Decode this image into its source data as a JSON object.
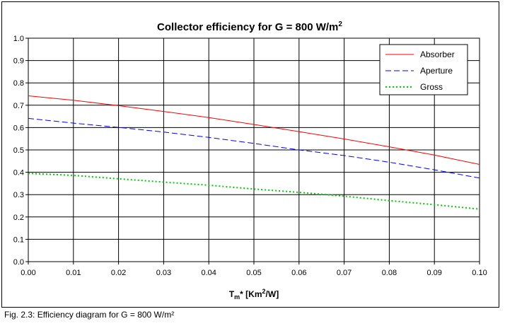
{
  "chart_data": {
    "type": "line",
    "title_main": "Collector efficiency for G = 800 W/m",
    "title_sup": "2",
    "xlabel_main": "T",
    "xlabel_sub": "m",
    "xlabel_mid": "* [Km",
    "xlabel_sup": "2",
    "xlabel_end": "/W]",
    "xlim": [
      0,
      0.1
    ],
    "ylim": [
      0,
      1.0
    ],
    "x_ticks": [
      "0.00",
      "0.01",
      "0.02",
      "0.03",
      "0.04",
      "0.05",
      "0.06",
      "0.07",
      "0.08",
      "0.09",
      "0.10"
    ],
    "y_ticks": [
      "0.0",
      "0.1",
      "0.2",
      "0.3",
      "0.4",
      "0.5",
      "0.6",
      "0.7",
      "0.8",
      "0.9",
      "1.0"
    ],
    "grid": true,
    "legend_position": "top-right",
    "x": [
      0,
      0.01,
      0.02,
      0.03,
      0.04,
      0.05,
      0.06,
      0.07,
      0.08,
      0.09,
      0.1
    ],
    "series": [
      {
        "name": "Absorber",
        "color": "#ff0000",
        "dash": "solid",
        "values": [
          0.742,
          0.722,
          0.698,
          0.672,
          0.645,
          0.614,
          0.582,
          0.549,
          0.514,
          0.477,
          0.435
        ]
      },
      {
        "name": "Aperture",
        "color": "#0000ff",
        "dash": "dashed",
        "values": [
          0.641,
          0.62,
          0.601,
          0.58,
          0.556,
          0.529,
          0.5,
          0.475,
          0.445,
          0.411,
          0.374
        ]
      },
      {
        "name": "Gross",
        "color": "#00cc00",
        "dash": "dotted",
        "values": [
          0.395,
          0.386,
          0.371,
          0.356,
          0.342,
          0.325,
          0.31,
          0.293,
          0.273,
          0.255,
          0.235
        ]
      }
    ]
  },
  "caption": "Fig. 2.3: Efficiency diagram for G = 800 W/m²"
}
